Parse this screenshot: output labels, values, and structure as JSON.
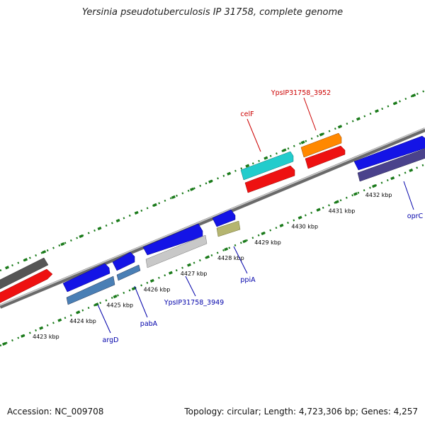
{
  "title": "Yersinia pseudotuberculosis IP 31758, complete genome",
  "footer": {
    "accession": "Accession: NC_009708",
    "summary": "Topology: circular; Length: 4,723,306 bp; Genes: 4,257"
  },
  "scale_labels": [
    {
      "kbp": 4423,
      "text": "4423 kbp"
    },
    {
      "kbp": 4424,
      "text": "4424 kbp"
    },
    {
      "kbp": 4425,
      "text": "4425 kbp"
    },
    {
      "kbp": 4426,
      "text": "4426 kbp"
    },
    {
      "kbp": 4427,
      "text": "4427 kbp"
    },
    {
      "kbp": 4428,
      "text": "4428 kbp"
    },
    {
      "kbp": 4429,
      "text": "4429 kbp"
    },
    {
      "kbp": 4430,
      "text": "4430 kbp"
    },
    {
      "kbp": 4431,
      "text": "4431 kbp"
    },
    {
      "kbp": 4432,
      "text": "4432 kbp"
    }
  ],
  "gene_labels_top": [
    {
      "name": "celF",
      "color": "#cc0000"
    },
    {
      "name": "YpsIP31758_3952",
      "color": "#cc0000"
    }
  ],
  "gene_labels_bottom": [
    {
      "name": "argD",
      "color": "#0000aa"
    },
    {
      "name": "pabA",
      "color": "#0000aa"
    },
    {
      "name": "YpsIP31758_3949",
      "color": "#0000aa"
    },
    {
      "name": "ppiA",
      "color": "#0000aa"
    },
    {
      "name": "oprC",
      "color": "#0000aa"
    }
  ],
  "colors": {
    "backbone": "#8c8c8c",
    "tick": "#1a7a1a",
    "cds_blue": "#1414e6",
    "cds_red": "#ee1111",
    "cds_cyan": "#22cccc",
    "cds_orange": "#ff8800",
    "cds_gray": "#bbbbbb",
    "cds_darkgray": "#555555",
    "cds_steel": "#4a7fb5",
    "cds_olive": "#b5b570",
    "cds_indigo": "#4a428c"
  }
}
